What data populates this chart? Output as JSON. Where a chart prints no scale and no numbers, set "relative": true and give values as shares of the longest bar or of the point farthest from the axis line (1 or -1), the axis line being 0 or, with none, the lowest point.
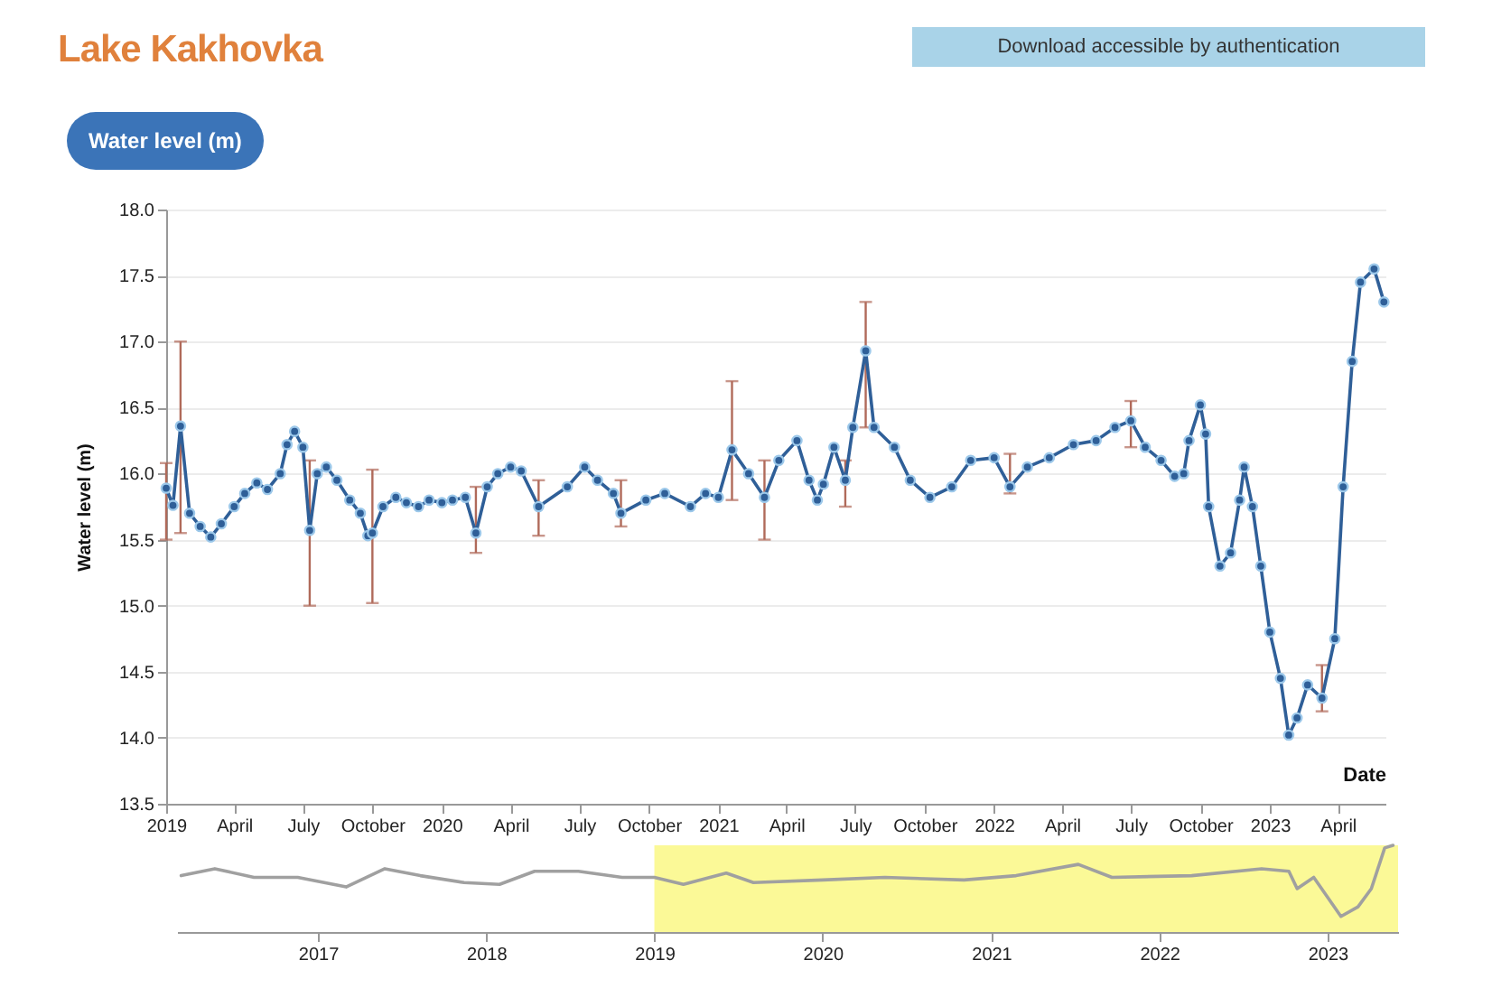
{
  "chart_data": [
    {
      "type": "line",
      "title": "Lake Kakhovka",
      "subtitle": "Water level (m)",
      "annotations": [
        "Download accessible by authentication"
      ],
      "xlabel": "Date",
      "ylabel": "Water level (m)",
      "x": [
        "2019-01-01",
        "2019-01-10",
        "2019-01-20",
        "2019-02-01",
        "2019-02-15",
        "2019-03-01",
        "2019-03-15",
        "2019-04-01",
        "2019-04-15",
        "2019-05-01",
        "2019-05-15",
        "2019-06-01",
        "2019-06-10",
        "2019-06-20",
        "2019-07-01",
        "2019-07-10",
        "2019-07-20",
        "2019-08-01",
        "2019-08-15",
        "2019-09-01",
        "2019-09-15",
        "2019-09-25",
        "2019-10-01",
        "2019-10-15",
        "2019-11-01",
        "2019-11-15",
        "2019-12-01",
        "2019-12-15",
        "2020-01-01",
        "2020-01-15",
        "2020-02-01",
        "2020-02-15",
        "2020-03-01",
        "2020-03-15",
        "2020-04-01",
        "2020-04-15",
        "2020-05-08",
        "2020-06-15",
        "2020-07-08",
        "2020-07-25",
        "2020-08-15",
        "2020-08-25",
        "2020-09-27",
        "2020-10-22",
        "2020-11-25",
        "2020-12-15",
        "2021-01-01",
        "2021-01-19",
        "2021-02-10",
        "2021-03-03",
        "2021-03-22",
        "2021-04-15",
        "2021-05-01",
        "2021-05-12",
        "2021-05-20",
        "2021-06-03",
        "2021-06-18",
        "2021-06-28",
        "2021-07-15",
        "2021-07-26",
        "2021-08-22",
        "2021-09-12",
        "2021-10-08",
        "2021-11-06",
        "2021-12-01",
        "2022-01-01",
        "2022-01-22",
        "2022-02-14",
        "2022-03-15",
        "2022-04-16",
        "2022-05-16",
        "2022-06-10",
        "2022-07-01",
        "2022-07-20",
        "2022-08-10",
        "2022-08-28",
        "2022-09-09",
        "2022-09-16",
        "2022-10-01",
        "2022-10-08",
        "2022-10-12",
        "2022-10-27",
        "2022-11-10",
        "2022-11-22",
        "2022-11-28",
        "2022-12-09",
        "2022-12-20",
        "2023-01-01",
        "2023-01-15",
        "2023-01-26",
        "2023-02-06",
        "2023-02-20",
        "2023-03-11",
        "2023-03-28",
        "2023-04-08",
        "2023-04-20",
        "2023-05-01",
        "2023-05-19",
        "2023-06-01"
      ],
      "series": [
        {
          "color": "#2f5f98",
          "values": [
            15.89,
            15.76,
            16.36,
            15.7,
            15.6,
            15.52,
            15.62,
            15.75,
            15.85,
            15.93,
            15.88,
            16.0,
            16.22,
            16.32,
            16.2,
            15.57,
            16.0,
            16.05,
            15.95,
            15.8,
            15.7,
            15.53,
            15.55,
            15.75,
            15.82,
            15.78,
            15.75,
            15.8,
            15.78,
            15.8,
            15.82,
            15.55,
            15.9,
            16.0,
            16.05,
            16.02,
            15.75,
            15.9,
            16.05,
            15.95,
            15.85,
            15.7,
            15.8,
            15.85,
            15.75,
            15.85,
            15.82,
            16.18,
            16.0,
            15.82,
            16.1,
            16.25,
            15.95,
            15.8,
            15.92,
            16.2,
            15.95,
            16.35,
            16.93,
            16.35,
            16.2,
            15.95,
            15.82,
            15.9,
            16.1,
            16.12,
            15.9,
            16.05,
            16.12,
            16.22,
            16.25,
            16.35,
            16.4,
            16.2,
            16.1,
            15.98,
            16.0,
            16.25,
            16.52,
            16.3,
            15.75,
            15.3,
            15.4,
            15.8,
            16.05,
            15.75,
            15.3,
            14.8,
            14.45,
            14.02,
            14.15,
            14.4,
            14.3,
            14.75,
            15.9,
            16.85,
            17.45,
            17.55,
            17.3
          ],
          "errors": [
            [
              15.5,
              16.08
            ],
            null,
            [
              15.55,
              17.0
            ],
            null,
            null,
            null,
            null,
            null,
            null,
            null,
            null,
            null,
            null,
            null,
            null,
            [
              15.0,
              16.1
            ],
            null,
            null,
            null,
            null,
            null,
            null,
            [
              15.02,
              16.03
            ],
            null,
            null,
            null,
            null,
            null,
            null,
            null,
            null,
            [
              15.4,
              15.9
            ],
            null,
            null,
            null,
            null,
            [
              15.53,
              15.95
            ],
            null,
            null,
            null,
            null,
            [
              15.6,
              15.95
            ],
            null,
            null,
            null,
            null,
            null,
            [
              15.8,
              16.7
            ],
            null,
            [
              15.5,
              16.1
            ],
            null,
            null,
            null,
            null,
            null,
            null,
            [
              15.75,
              16.1
            ],
            null,
            [
              16.35,
              17.3
            ],
            null,
            null,
            null,
            null,
            null,
            null,
            null,
            [
              15.85,
              16.15
            ],
            null,
            null,
            null,
            null,
            null,
            [
              16.2,
              16.55
            ],
            null,
            null,
            null,
            null,
            null,
            null,
            null,
            null,
            null,
            null,
            null,
            null,
            null,
            null,
            null,
            null,
            null,
            null,
            null,
            [
              14.2,
              14.55
            ],
            null,
            null,
            null,
            null,
            null,
            null
          ]
        }
      ],
      "xlim": [
        "2019-01-01",
        "2023-06-03"
      ],
      "xticks": [
        "2019",
        {
          "value": "2019-04",
          "label": "April"
        },
        {
          "value": "2019-07",
          "label": "July"
        },
        {
          "value": "2019-10",
          "label": "October"
        },
        "2020",
        {
          "value": "2020-04",
          "label": "April"
        },
        {
          "value": "2020-07",
          "label": "July"
        },
        {
          "value": "2020-10",
          "label": "October"
        },
        "2021",
        {
          "value": "2021-04",
          "label": "April"
        },
        {
          "value": "2021-07",
          "label": "July"
        },
        {
          "value": "2021-10",
          "label": "October"
        },
        "2022",
        {
          "value": "2022-04",
          "label": "April"
        },
        {
          "value": "2022-07",
          "label": "July"
        },
        {
          "value": "2022-10",
          "label": "October"
        },
        "2023",
        {
          "value": "2023-04",
          "label": "April"
        }
      ],
      "ylim": [
        13.5,
        18.0
      ],
      "yticks": [
        13.5,
        {
          "value": 14,
          "label": "14.0"
        },
        14.5,
        {
          "value": 15,
          "label": "15.0"
        },
        15.5,
        {
          "value": 16,
          "label": "16.0"
        },
        16.5,
        {
          "value": 17,
          "label": "17.0"
        },
        17.5,
        {
          "value": 18,
          "label": "18.0"
        }
      ],
      "grid": "y",
      "marker": "circle",
      "line_style": "solid"
    },
    {
      "type": "line",
      "relative": true,
      "x": [
        "2016-03-10",
        "2016-05-22",
        "2016-08-15",
        "2016-11-18",
        "2017-03-03",
        "2017-05-26",
        "2017-08-11",
        "2017-11-14",
        "2018-01-30",
        "2018-04-16",
        "2018-07-20",
        "2018-10-23",
        "2019-01-01",
        "2019-03-05",
        "2019-06-06",
        "2019-08-04",
        "2020-01-01",
        "2020-05-15",
        "2020-11-03",
        "2021-02-24",
        "2021-07-09",
        "2021-09-20",
        "2022-03-12",
        "2022-08-11",
        "2022-10-09",
        "2022-10-27",
        "2022-12-02",
        "2023-01-30",
        "2023-03-08",
        "2023-04-06",
        "2023-05-05",
        "2023-05-23"
      ],
      "series": [
        {
          "color": "#a0a0a0",
          "values": [
            0.65,
            0.73,
            0.63,
            0.63,
            0.52,
            0.73,
            0.65,
            0.57,
            0.55,
            0.7,
            0.7,
            0.63,
            0.63,
            0.55,
            0.68,
            0.57,
            0.6,
            0.63,
            0.6,
            0.65,
            0.78,
            0.63,
            0.65,
            0.73,
            0.7,
            0.5,
            0.63,
            0.18,
            0.29,
            0.5,
            0.97,
            1.0
          ]
        }
      ],
      "xlim": [
        "2016-03-01",
        "2023-06-03"
      ],
      "xticks": [
        "2017",
        "2018",
        "2019",
        "2020",
        "2021",
        "2022",
        "2023"
      ],
      "bands": [
        {
          "axis": "x",
          "from": "2019-01-01",
          "to": "2023-06-03",
          "color": "#fbf88c"
        }
      ],
      "tick_labels": "x"
    }
  ]
}
